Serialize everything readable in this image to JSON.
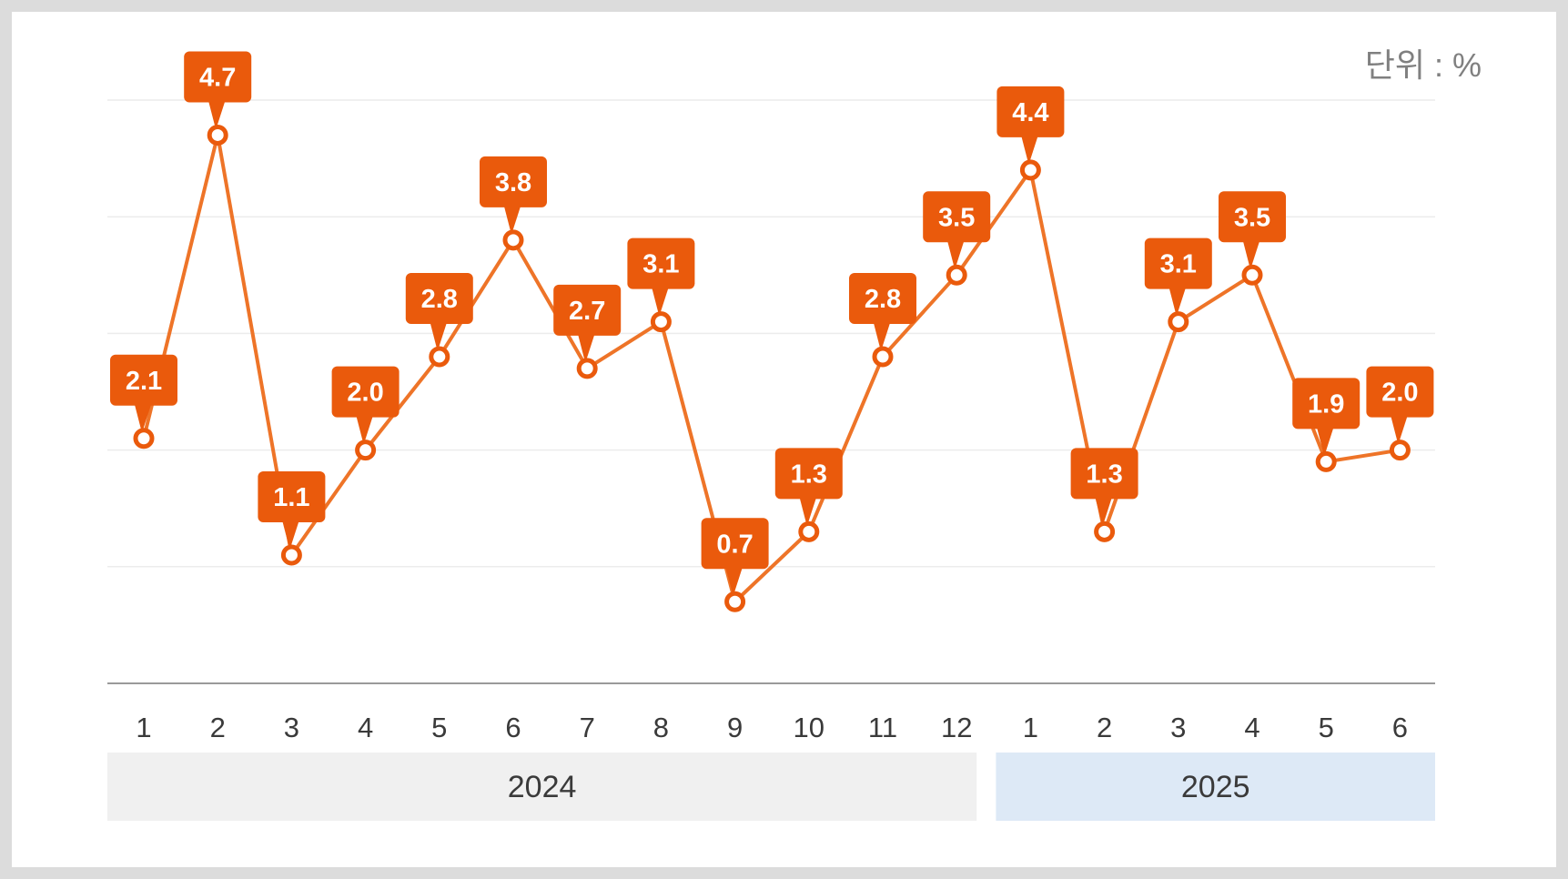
{
  "unit_label": "단위 : %",
  "colors": {
    "line": "#ee7428",
    "callout": "#ea5a0c",
    "grid": "#ececec",
    "axis": "#9a9a9a",
    "year_2024_band": "#f0f0f0",
    "year_2025_band": "#dde9f6"
  },
  "chart_data": {
    "type": "line",
    "title": "",
    "xlabel": "",
    "ylabel": "",
    "unit": "단위 : %",
    "ylim": [
      0,
      5
    ],
    "grid": true,
    "categories": [
      "1",
      "2",
      "3",
      "4",
      "5",
      "6",
      "7",
      "8",
      "9",
      "10",
      "11",
      "12",
      "1",
      "2",
      "3",
      "4",
      "5",
      "6"
    ],
    "year_groups": [
      {
        "label": "2024",
        "months": 12
      },
      {
        "label": "2025",
        "months": 6
      }
    ],
    "series": [
      {
        "values": [
          2.1,
          4.7,
          1.1,
          2.0,
          2.8,
          3.8,
          2.7,
          3.1,
          0.7,
          1.3,
          2.8,
          3.5,
          4.4,
          1.3,
          3.1,
          3.5,
          1.9,
          2.0
        ],
        "labels": [
          "2.1",
          "4.7",
          "1.1",
          "2.0",
          "2.8",
          "3.8",
          "2.7",
          "3.1",
          "0.7",
          "1.3",
          "2.8",
          "3.5",
          "4.4",
          "1.3",
          "3.1",
          "3.5",
          "1.9",
          "2.0"
        ]
      }
    ]
  }
}
